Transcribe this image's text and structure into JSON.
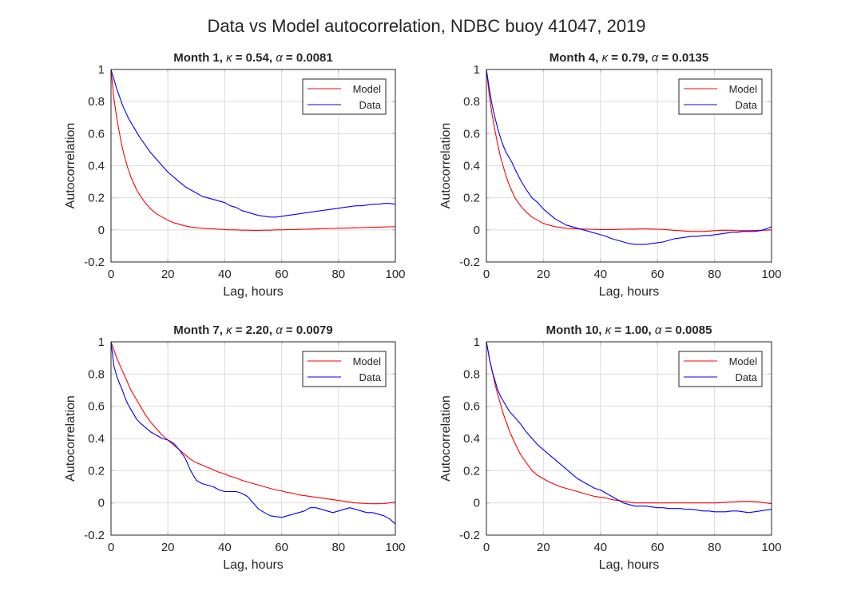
{
  "figure": {
    "title": "Data vs Model autocorrelation, NDBC buoy 41047, 2019"
  },
  "colors": {
    "model": "#ff0000",
    "data": "#0000ff"
  },
  "chart_data": [
    {
      "type": "line",
      "title_parts": [
        "Month 1, ",
        "κ",
        " = 0.54, ",
        "α",
        " = 0.0081"
      ],
      "xlabel": "Lag, hours",
      "ylabel": "Autocorrelation",
      "xlim": [
        0,
        100
      ],
      "ylim": [
        -0.2,
        1
      ],
      "xticks": [
        "0",
        "20",
        "40",
        "60",
        "80",
        "100"
      ],
      "yticks": [
        "-0.2",
        "0",
        "0.2",
        "0.4",
        "0.6",
        "0.8",
        "1"
      ],
      "grid": true,
      "legend_position": "top-right",
      "series": [
        {
          "name": "Model",
          "color": "#ff0000",
          "x": [
            0,
            1,
            2,
            3,
            4,
            5,
            6,
            7,
            8,
            9,
            10,
            12,
            14,
            16,
            18,
            20,
            22,
            24,
            26,
            28,
            30,
            32,
            34,
            36,
            38,
            40,
            42,
            44,
            46,
            48,
            50,
            52,
            54,
            56,
            58,
            60,
            62,
            64,
            66,
            68,
            70,
            72,
            74,
            76,
            78,
            80,
            82,
            84,
            86,
            88,
            90,
            92,
            94,
            96,
            98,
            100
          ],
          "y": [
            1.0,
            0.82,
            0.7,
            0.6,
            0.51,
            0.44,
            0.38,
            0.33,
            0.29,
            0.25,
            0.22,
            0.17,
            0.13,
            0.1,
            0.08,
            0.06,
            0.045,
            0.035,
            0.025,
            0.018,
            0.013,
            0.01,
            0.008,
            0.006,
            0.004,
            0.002,
            0.0,
            0.0,
            -0.002,
            -0.002,
            -0.003,
            -0.003,
            -0.002,
            -0.002,
            0.0,
            0.0,
            0.001,
            0.002,
            0.003,
            0.004,
            0.005,
            0.006,
            0.007,
            0.008,
            0.009,
            0.01,
            0.011,
            0.012,
            0.013,
            0.014,
            0.015,
            0.016,
            0.017,
            0.018,
            0.019,
            0.02
          ]
        },
        {
          "name": "Data",
          "color": "#0000ff",
          "x": [
            0,
            1,
            2,
            3,
            4,
            5,
            6,
            7,
            8,
            9,
            10,
            12,
            14,
            16,
            18,
            20,
            22,
            24,
            26,
            28,
            30,
            32,
            34,
            36,
            38,
            40,
            42,
            44,
            46,
            48,
            50,
            52,
            54,
            56,
            58,
            60,
            62,
            64,
            66,
            68,
            70,
            72,
            74,
            76,
            78,
            80,
            82,
            84,
            86,
            88,
            90,
            92,
            94,
            96,
            98,
            100
          ],
          "y": [
            1.0,
            0.94,
            0.88,
            0.83,
            0.78,
            0.74,
            0.7,
            0.67,
            0.64,
            0.61,
            0.58,
            0.53,
            0.48,
            0.44,
            0.4,
            0.36,
            0.33,
            0.3,
            0.27,
            0.25,
            0.23,
            0.21,
            0.2,
            0.19,
            0.18,
            0.17,
            0.15,
            0.14,
            0.12,
            0.11,
            0.1,
            0.09,
            0.085,
            0.08,
            0.08,
            0.085,
            0.09,
            0.095,
            0.1,
            0.105,
            0.11,
            0.115,
            0.12,
            0.125,
            0.13,
            0.135,
            0.14,
            0.145,
            0.15,
            0.15,
            0.155,
            0.16,
            0.16,
            0.165,
            0.165,
            0.16
          ]
        }
      ]
    },
    {
      "type": "line",
      "title_parts": [
        "Month 4, ",
        "κ",
        " = 0.79, ",
        "α",
        " = 0.0135"
      ],
      "xlabel": "Lag, hours",
      "ylabel": "Autocorrelation",
      "xlim": [
        0,
        100
      ],
      "ylim": [
        -0.2,
        1
      ],
      "xticks": [
        "0",
        "20",
        "40",
        "60",
        "80",
        "100"
      ],
      "yticks": [
        "-0.2",
        "0",
        "0.2",
        "0.4",
        "0.6",
        "0.8",
        "1"
      ],
      "grid": true,
      "legend_position": "top-right",
      "series": [
        {
          "name": "Model",
          "color": "#ff0000",
          "x": [
            0,
            1,
            2,
            3,
            4,
            5,
            6,
            7,
            8,
            9,
            10,
            12,
            14,
            16,
            18,
            20,
            22,
            24,
            26,
            28,
            30,
            32,
            34,
            36,
            38,
            40,
            42,
            44,
            46,
            48,
            50,
            52,
            54,
            56,
            58,
            60,
            62,
            64,
            66,
            68,
            70,
            72,
            74,
            76,
            78,
            80,
            82,
            84,
            86,
            88,
            90,
            92,
            94,
            96,
            98,
            100
          ],
          "y": [
            1.0,
            0.84,
            0.72,
            0.62,
            0.53,
            0.45,
            0.39,
            0.33,
            0.28,
            0.24,
            0.2,
            0.15,
            0.11,
            0.08,
            0.06,
            0.04,
            0.03,
            0.02,
            0.015,
            0.01,
            0.008,
            0.006,
            0.005,
            0.004,
            0.003,
            0.002,
            0.002,
            0.002,
            0.003,
            0.004,
            0.005,
            0.005,
            0.006,
            0.006,
            0.005,
            0.004,
            0.003,
            0.0,
            -0.003,
            -0.005,
            -0.008,
            -0.01,
            -0.01,
            -0.01,
            -0.008,
            -0.005,
            -0.003,
            -0.002,
            -0.003,
            -0.005,
            -0.005,
            -0.005,
            -0.004,
            -0.003,
            -0.002,
            0.0
          ]
        },
        {
          "name": "Data",
          "color": "#0000ff",
          "x": [
            0,
            1,
            2,
            3,
            4,
            5,
            6,
            7,
            8,
            9,
            10,
            12,
            14,
            16,
            18,
            20,
            22,
            24,
            26,
            28,
            30,
            32,
            34,
            36,
            38,
            40,
            42,
            44,
            46,
            48,
            50,
            52,
            54,
            56,
            58,
            60,
            62,
            64,
            66,
            68,
            70,
            72,
            74,
            76,
            78,
            80,
            82,
            84,
            86,
            88,
            90,
            92,
            94,
            96,
            98,
            100
          ],
          "y": [
            1.0,
            0.88,
            0.78,
            0.7,
            0.63,
            0.57,
            0.52,
            0.48,
            0.45,
            0.42,
            0.38,
            0.31,
            0.25,
            0.2,
            0.17,
            0.13,
            0.1,
            0.07,
            0.05,
            0.03,
            0.02,
            0.01,
            0.0,
            -0.01,
            -0.02,
            -0.03,
            -0.04,
            -0.055,
            -0.065,
            -0.075,
            -0.085,
            -0.09,
            -0.09,
            -0.09,
            -0.085,
            -0.08,
            -0.075,
            -0.065,
            -0.055,
            -0.05,
            -0.045,
            -0.04,
            -0.04,
            -0.035,
            -0.035,
            -0.03,
            -0.025,
            -0.02,
            -0.015,
            -0.015,
            -0.01,
            -0.01,
            -0.01,
            -0.005,
            0.005,
            0.02
          ]
        }
      ]
    },
    {
      "type": "line",
      "title_parts": [
        "Month 7, ",
        "κ",
        " = 2.20, ",
        "α",
        " = 0.0079"
      ],
      "xlabel": "Lag, hours",
      "ylabel": "Autocorrelation",
      "xlim": [
        0,
        100
      ],
      "ylim": [
        -0.2,
        1
      ],
      "xticks": [
        "0",
        "20",
        "40",
        "60",
        "80",
        "100"
      ],
      "yticks": [
        "-0.2",
        "0",
        "0.2",
        "0.4",
        "0.6",
        "0.8",
        "1"
      ],
      "grid": true,
      "legend_position": "top-right",
      "series": [
        {
          "name": "Model",
          "color": "#ff0000",
          "x": [
            0,
            1,
            2,
            3,
            4,
            5,
            6,
            7,
            8,
            9,
            10,
            12,
            14,
            16,
            18,
            20,
            22,
            24,
            26,
            28,
            30,
            32,
            34,
            36,
            38,
            40,
            42,
            44,
            46,
            48,
            50,
            52,
            54,
            56,
            58,
            60,
            62,
            64,
            66,
            68,
            70,
            72,
            74,
            76,
            78,
            80,
            82,
            84,
            86,
            88,
            90,
            92,
            94,
            96,
            98,
            100
          ],
          "y": [
            1.0,
            0.95,
            0.9,
            0.86,
            0.82,
            0.78,
            0.74,
            0.7,
            0.67,
            0.64,
            0.61,
            0.55,
            0.5,
            0.46,
            0.42,
            0.39,
            0.36,
            0.33,
            0.3,
            0.27,
            0.25,
            0.235,
            0.22,
            0.205,
            0.19,
            0.18,
            0.165,
            0.155,
            0.14,
            0.13,
            0.12,
            0.11,
            0.1,
            0.09,
            0.08,
            0.075,
            0.065,
            0.06,
            0.05,
            0.045,
            0.04,
            0.035,
            0.03,
            0.025,
            0.02,
            0.015,
            0.01,
            0.005,
            0.0,
            -0.002,
            -0.004,
            -0.005,
            -0.005,
            -0.004,
            0.0,
            0.005
          ]
        },
        {
          "name": "Data",
          "color": "#0000ff",
          "x": [
            0,
            1,
            2,
            3,
            4,
            5,
            6,
            7,
            8,
            9,
            10,
            12,
            14,
            16,
            18,
            20,
            22,
            24,
            26,
            28,
            30,
            32,
            34,
            36,
            38,
            40,
            42,
            44,
            46,
            48,
            50,
            52,
            54,
            56,
            58,
            60,
            62,
            64,
            66,
            68,
            70,
            72,
            74,
            76,
            78,
            80,
            82,
            84,
            86,
            88,
            90,
            92,
            94,
            96,
            98,
            100
          ],
          "y": [
            1.0,
            0.85,
            0.79,
            0.74,
            0.7,
            0.65,
            0.61,
            0.58,
            0.55,
            0.52,
            0.5,
            0.47,
            0.44,
            0.42,
            0.4,
            0.39,
            0.37,
            0.33,
            0.28,
            0.2,
            0.14,
            0.12,
            0.11,
            0.1,
            0.08,
            0.07,
            0.07,
            0.07,
            0.06,
            0.04,
            0.0,
            -0.04,
            -0.06,
            -0.08,
            -0.085,
            -0.09,
            -0.08,
            -0.07,
            -0.06,
            -0.05,
            -0.03,
            -0.03,
            -0.04,
            -0.05,
            -0.06,
            -0.05,
            -0.04,
            -0.03,
            -0.04,
            -0.05,
            -0.06,
            -0.06,
            -0.07,
            -0.08,
            -0.1,
            -0.13
          ]
        }
      ]
    },
    {
      "type": "line",
      "title_parts": [
        "Month 10, ",
        "κ",
        " = 1.00, ",
        "α",
        " = 0.0085"
      ],
      "xlabel": "Lag, hours",
      "ylabel": "Autocorrelation",
      "xlim": [
        0,
        100
      ],
      "ylim": [
        -0.2,
        1
      ],
      "xticks": [
        "0",
        "20",
        "40",
        "60",
        "80",
        "100"
      ],
      "yticks": [
        "-0.2",
        "0",
        "0.2",
        "0.4",
        "0.6",
        "0.8",
        "1"
      ],
      "grid": true,
      "legend_position": "top-right",
      "series": [
        {
          "name": "Model",
          "color": "#ff0000",
          "x": [
            0,
            1,
            2,
            3,
            4,
            5,
            6,
            7,
            8,
            9,
            10,
            12,
            14,
            16,
            18,
            20,
            22,
            24,
            26,
            28,
            30,
            32,
            34,
            36,
            38,
            40,
            42,
            44,
            46,
            48,
            50,
            52,
            54,
            56,
            58,
            60,
            62,
            64,
            66,
            68,
            70,
            72,
            74,
            76,
            78,
            80,
            82,
            84,
            86,
            88,
            90,
            92,
            94,
            96,
            98,
            100
          ],
          "y": [
            1.0,
            0.9,
            0.82,
            0.74,
            0.67,
            0.61,
            0.55,
            0.5,
            0.45,
            0.41,
            0.37,
            0.3,
            0.25,
            0.2,
            0.17,
            0.15,
            0.13,
            0.115,
            0.1,
            0.09,
            0.08,
            0.07,
            0.06,
            0.05,
            0.04,
            0.035,
            0.03,
            0.02,
            0.015,
            0.01,
            0.005,
            0.0,
            0.0,
            0.0,
            0.0,
            0.0,
            0.0,
            0.0,
            0.0,
            0.0,
            0.0,
            0.0,
            0.0,
            0.0,
            0.0,
            0.0,
            0.002,
            0.004,
            0.006,
            0.008,
            0.01,
            0.01,
            0.008,
            0.005,
            0.0,
            -0.005
          ]
        },
        {
          "name": "Data",
          "color": "#0000ff",
          "x": [
            0,
            1,
            2,
            3,
            4,
            5,
            6,
            7,
            8,
            9,
            10,
            12,
            14,
            16,
            18,
            20,
            22,
            24,
            26,
            28,
            30,
            32,
            34,
            36,
            38,
            40,
            42,
            44,
            46,
            48,
            50,
            52,
            54,
            56,
            58,
            60,
            62,
            64,
            66,
            68,
            70,
            72,
            74,
            76,
            78,
            80,
            82,
            84,
            86,
            88,
            90,
            92,
            94,
            96,
            98,
            100
          ],
          "y": [
            1.0,
            0.9,
            0.82,
            0.76,
            0.7,
            0.66,
            0.63,
            0.6,
            0.57,
            0.55,
            0.53,
            0.49,
            0.44,
            0.4,
            0.36,
            0.33,
            0.3,
            0.27,
            0.24,
            0.21,
            0.18,
            0.15,
            0.13,
            0.11,
            0.09,
            0.08,
            0.06,
            0.04,
            0.02,
            0.0,
            -0.01,
            -0.02,
            -0.02,
            -0.02,
            -0.025,
            -0.03,
            -0.03,
            -0.035,
            -0.035,
            -0.035,
            -0.04,
            -0.04,
            -0.045,
            -0.05,
            -0.05,
            -0.055,
            -0.055,
            -0.055,
            -0.05,
            -0.05,
            -0.055,
            -0.06,
            -0.055,
            -0.05,
            -0.045,
            -0.04
          ]
        }
      ]
    }
  ]
}
